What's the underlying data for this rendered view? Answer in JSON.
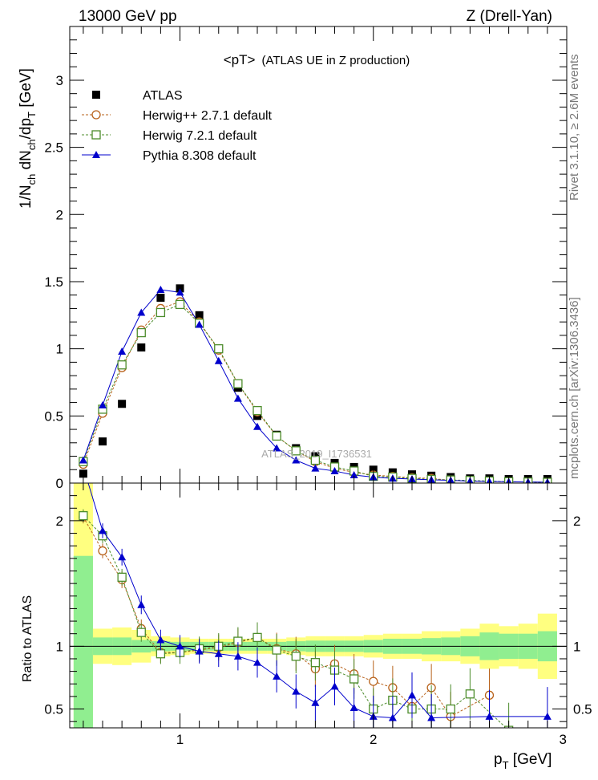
{
  "header": {
    "energy": "13000 GeV pp",
    "process": "Z (Drell-Yan)"
  },
  "side_labels": {
    "rivet": "Rivet 3.1.10, ≥ 2.6M events",
    "mcplots": "mcplots.cern.ch [arXiv:1306.3436]"
  },
  "chart_data": [
    {
      "type": "line",
      "title": "<pT>",
      "subtitle": "(ATLAS UE in Z production)",
      "ylabel": "1/N_ch dN_ch/dp_T [GeV]",
      "xlabel": "",
      "xlim": [
        0.43,
        3.0
      ],
      "ylim": [
        0,
        3.4
      ],
      "yticks": [
        0,
        0.5,
        1,
        1.5,
        2,
        2.5,
        3
      ],
      "ytick_labels": [
        "0",
        "0.5",
        "1",
        "1.5",
        "2",
        "2.5",
        "3"
      ],
      "analysis_watermark": "ATLAS_2019_I1736531",
      "legend_position": "top-left",
      "x": [
        0.5,
        0.6,
        0.7,
        0.8,
        0.9,
        1.0,
        1.1,
        1.2,
        1.3,
        1.4,
        1.5,
        1.6,
        1.7,
        1.8,
        1.9,
        2.0,
        2.1,
        2.2,
        2.3,
        2.4,
        2.5,
        2.6,
        2.7,
        2.8,
        2.9
      ],
      "series": [
        {
          "name": "ATLAS",
          "style": "data",
          "color": "#000000",
          "values": [
            0.07,
            0.31,
            0.59,
            1.01,
            1.38,
            1.45,
            1.25,
            1.0,
            0.71,
            0.5,
            0.36,
            0.26,
            0.2,
            0.15,
            0.12,
            0.1,
            0.08,
            0.065,
            0.055,
            0.045,
            0.035,
            0.035,
            0.03,
            0.03,
            0.03
          ]
        },
        {
          "name": "Herwig++ 2.7.1 default",
          "style": "circle",
          "color": "#b8621b",
          "values": [
            0.14,
            0.52,
            0.86,
            1.14,
            1.3,
            1.35,
            1.2,
            0.99,
            0.74,
            0.53,
            0.35,
            0.24,
            0.16,
            0.11,
            0.08,
            0.06,
            0.05,
            0.04,
            0.035,
            0.02,
            0.015,
            0.012,
            0.01,
            0.008,
            0.006
          ]
        },
        {
          "name": "Herwig 7.2.1 default",
          "style": "square",
          "color": "#4c8c2b",
          "values": [
            0.16,
            0.55,
            0.88,
            1.12,
            1.27,
            1.33,
            1.19,
            1.0,
            0.74,
            0.54,
            0.35,
            0.24,
            0.17,
            0.12,
            0.09,
            0.05,
            0.045,
            0.035,
            0.027,
            0.023,
            0.02,
            0.015,
            0.01,
            0.008,
            0.006
          ]
        },
        {
          "name": "Pythia 8.308 default",
          "style": "triangle",
          "color": "#0000cc",
          "values": [
            0.17,
            0.58,
            0.98,
            1.27,
            1.44,
            1.42,
            1.18,
            0.91,
            0.63,
            0.42,
            0.26,
            0.17,
            0.11,
            0.09,
            0.06,
            0.045,
            0.035,
            0.03,
            0.025,
            0.02,
            0.015,
            0.012,
            0.01,
            0.008,
            0.007
          ]
        }
      ]
    },
    {
      "type": "line",
      "ylabel": "Ratio to ATLAS",
      "xlabel": "p_T [GeV]",
      "xlim": [
        0.43,
        3.0
      ],
      "ylim": [
        0.35,
        2.3
      ],
      "xticks": [
        1,
        2,
        3
      ],
      "xtick_labels": [
        "1",
        "2",
        "3"
      ],
      "yticks": [
        0.5,
        1,
        2
      ],
      "ytick_labels": [
        "0.5",
        "1",
        "2"
      ],
      "x": [
        0.5,
        0.6,
        0.7,
        0.8,
        0.9,
        1.0,
        1.1,
        1.2,
        1.3,
        1.4,
        1.5,
        1.6,
        1.7,
        1.8,
        1.9,
        2.0,
        2.1,
        2.2,
        2.3,
        2.4,
        2.5,
        2.6,
        2.7,
        2.8,
        2.9
      ],
      "bands": {
        "yellow_halfwidth": [
          1.7,
          0.14,
          0.15,
          0.13,
          0.08,
          0.07,
          0.06,
          0.06,
          0.06,
          0.06,
          0.06,
          0.07,
          0.08,
          0.08,
          0.08,
          0.09,
          0.1,
          0.1,
          0.12,
          0.12,
          0.14,
          0.18,
          0.16,
          0.18,
          0.26
        ],
        "green_halfwidth": [
          0.72,
          0.07,
          0.07,
          0.05,
          0.04,
          0.035,
          0.035,
          0.035,
          0.035,
          0.035,
          0.035,
          0.04,
          0.045,
          0.045,
          0.045,
          0.05,
          0.06,
          0.06,
          0.065,
          0.07,
          0.08,
          0.11,
          0.1,
          0.1,
          0.12
        ]
      },
      "series": [
        {
          "name": "Herwig++ 2.7.1 default",
          "color": "#b8621b",
          "values": [
            2.03,
            1.76,
            1.53,
            1.14,
            0.95,
            0.95,
            0.97,
            0.99,
            1.03,
            1.07,
            0.98,
            0.94,
            0.82,
            0.86,
            0.78,
            0.72,
            0.67,
            0.52,
            0.67,
            0.44,
            null,
            0.61,
            null,
            null,
            null
          ]
        },
        {
          "name": "Herwig 7.2.1 default",
          "color": "#4c8c2b",
          "values": [
            2.04,
            1.88,
            1.55,
            1.11,
            0.94,
            0.95,
            0.98,
            1.0,
            1.04,
            1.07,
            0.97,
            0.92,
            0.87,
            0.81,
            0.74,
            0.5,
            0.57,
            0.5,
            0.5,
            0.5,
            0.62,
            null,
            0.33,
            null,
            null
          ]
        },
        {
          "name": "Pythia 8.308 default",
          "color": "#0000cc",
          "values": [
            2.43,
            1.92,
            1.71,
            1.33,
            1.05,
            1.0,
            0.96,
            0.94,
            0.92,
            0.87,
            0.76,
            0.64,
            0.55,
            0.68,
            0.51,
            0.44,
            0.43,
            0.61,
            0.43,
            null,
            null,
            0.44,
            null,
            null,
            0.44
          ]
        }
      ]
    }
  ]
}
